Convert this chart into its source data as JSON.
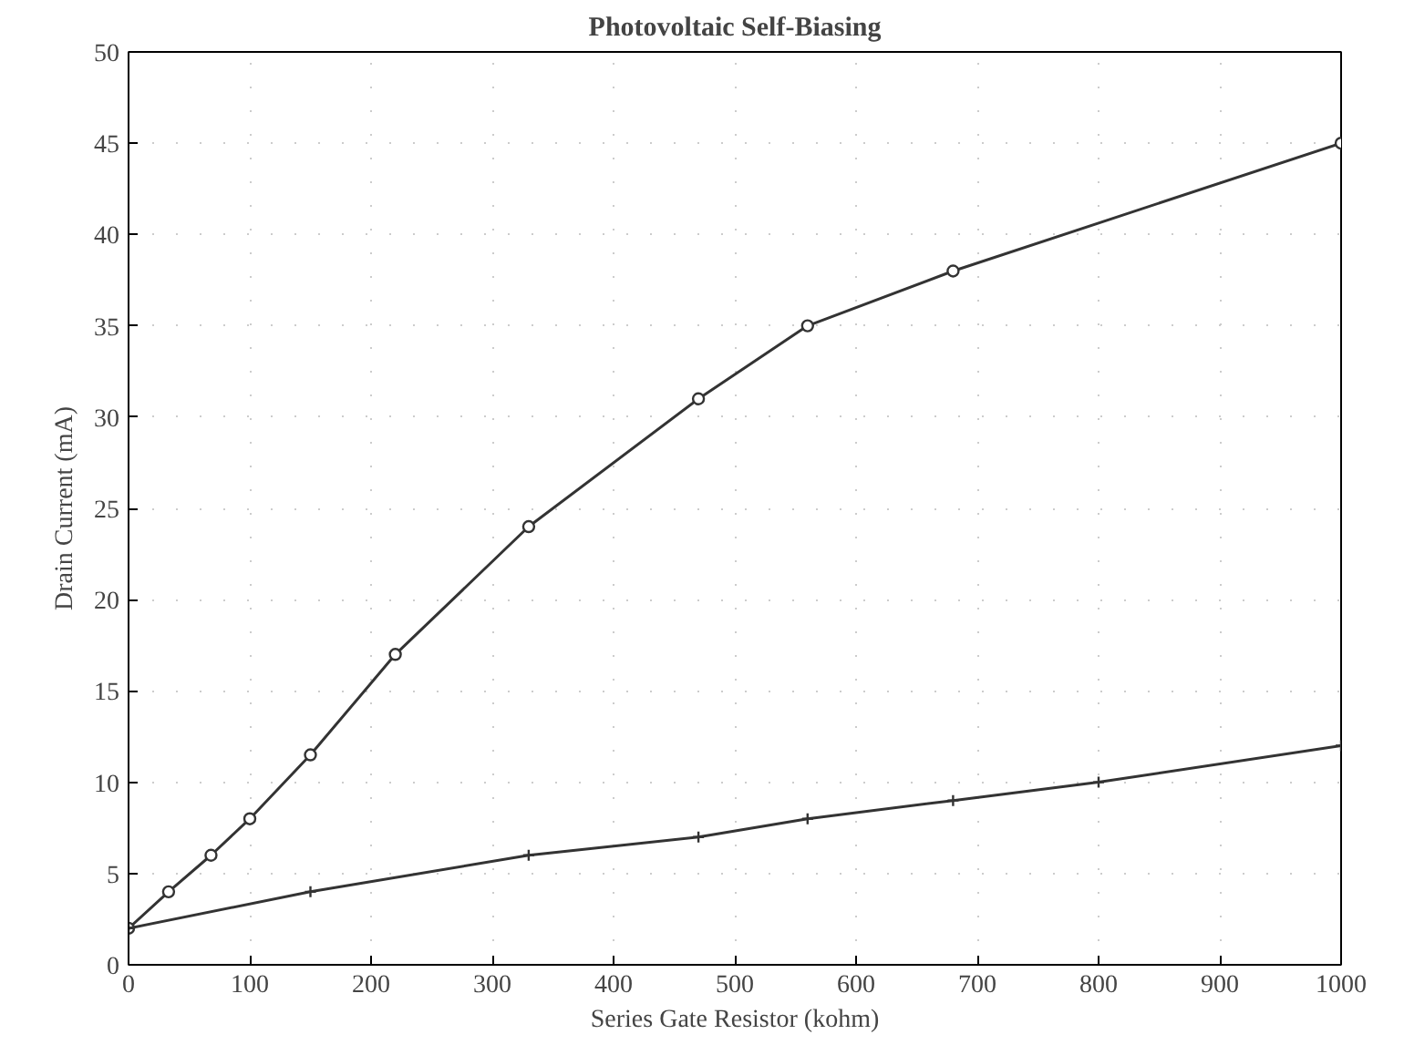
{
  "chart_data": {
    "type": "line",
    "title": "Photovoltaic Self-Biasing",
    "xlabel": "Series Gate Resistor (kohm)",
    "ylabel": "Drain Current (mA)",
    "xlim": [
      0,
      1000
    ],
    "ylim": [
      0,
      50
    ],
    "xticks": [
      0,
      100,
      200,
      300,
      400,
      500,
      600,
      700,
      800,
      900,
      1000
    ],
    "yticks": [
      0,
      5,
      10,
      15,
      20,
      25,
      30,
      35,
      40,
      45,
      50
    ],
    "grid": true,
    "line_style": "solid",
    "series": [
      {
        "color": "#333333",
        "marker": "circle",
        "x": [
          0,
          33,
          68,
          100,
          150,
          220,
          330,
          470,
          560,
          680,
          1000
        ],
        "values": [
          2,
          4,
          6,
          8,
          11.5,
          17,
          24,
          31,
          35,
          38,
          45
        ]
      },
      {
        "color": "#333333",
        "marker": "cross",
        "x": [
          0,
          150,
          330,
          470,
          560,
          680,
          800,
          1000
        ],
        "values": [
          2,
          4,
          6,
          7,
          8,
          9,
          10,
          12
        ]
      }
    ]
  }
}
